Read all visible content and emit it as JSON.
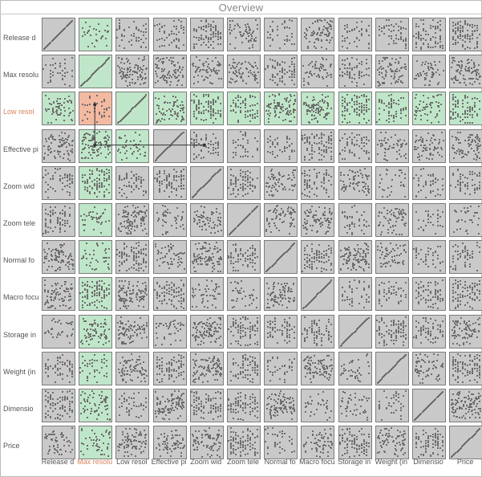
{
  "title": "Overview",
  "attributes": [
    "Release d",
    "Max resolu",
    "Low resol",
    "Effective pi",
    "Zoom wid",
    "Zoom tele",
    "Normal fo",
    "Macro focu",
    "Storage in",
    "Weight (in",
    "Dimensio",
    "Price"
  ],
  "selected_row": 2,
  "selected_col": 1,
  "colors": {
    "cell_default": "#c9c9c9",
    "cell_highlight": "#bfe6c8",
    "cell_selected": "#f4b9a1",
    "label_selected": "#d9825a",
    "connector_line": "#333333"
  }
}
